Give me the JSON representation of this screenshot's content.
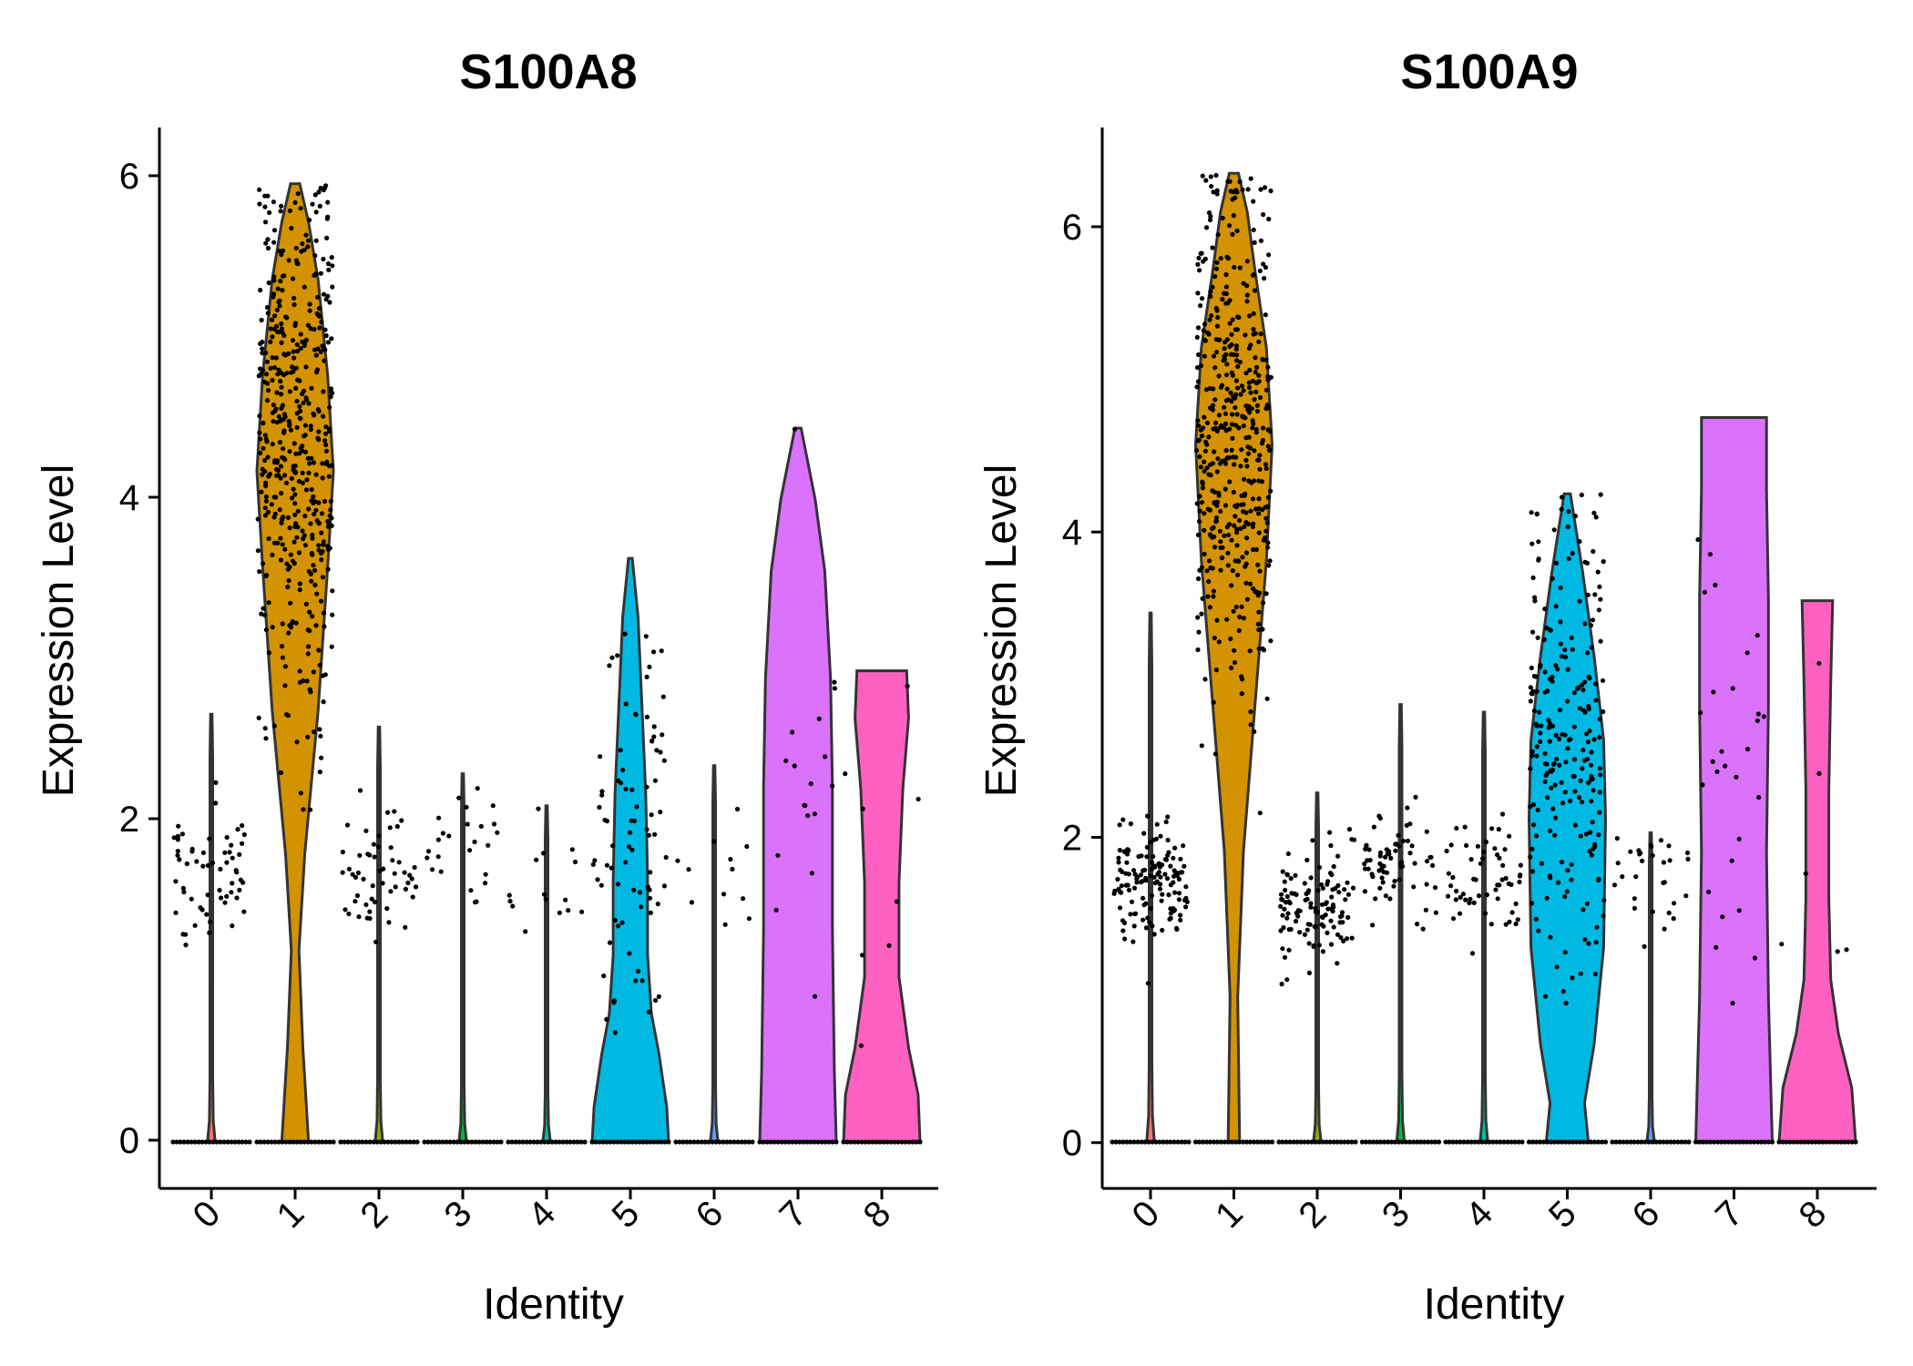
{
  "chart_data": [
    {
      "type": "violin",
      "title": "S100A8",
      "xlabel": "Identity",
      "ylabel": "Expression Level",
      "categories": [
        "0",
        "1",
        "2",
        "3",
        "4",
        "5",
        "6",
        "7",
        "8"
      ],
      "yticks": [
        0,
        2,
        4,
        6
      ],
      "ylim": [
        -0.3,
        6.3
      ],
      "max_values": [
        2.65,
        5.95,
        2.57,
        2.28,
        2.08,
        3.62,
        2.33,
        4.43,
        2.92
      ],
      "nonzero_center": [
        1.7,
        4.4,
        1.6,
        1.8,
        1.7,
        1.9,
        1.7,
        2.3,
        1.9
      ],
      "colors": [
        "#F8766D",
        "#D39200",
        "#93AA00",
        "#00BA38",
        "#00C19F",
        "#00B9E3",
        "#619CFF",
        "#DB72FB",
        "#FF61C3"
      ],
      "grid": false,
      "legend": "none"
    },
    {
      "type": "violin",
      "title": "S100A9",
      "xlabel": "Identity",
      "ylabel": "Expression Level",
      "categories": [
        "0",
        "1",
        "2",
        "3",
        "4",
        "5",
        "6",
        "7",
        "8"
      ],
      "yticks": [
        0,
        2,
        4,
        6
      ],
      "ylim": [
        -0.3,
        6.65
      ],
      "max_values": [
        3.47,
        6.35,
        2.29,
        2.87,
        2.82,
        4.25,
        2.03,
        4.75,
        3.55
      ],
      "nonzero_center": [
        1.7,
        4.7,
        1.55,
        1.85,
        1.75,
        2.6,
        1.75,
        2.6,
        2.0
      ],
      "colors": [
        "#F8766D",
        "#D39200",
        "#93AA00",
        "#00BA38",
        "#00C19F",
        "#00B9E3",
        "#619CFF",
        "#DB72FB",
        "#FF61C3"
      ],
      "grid": false,
      "legend": "none"
    }
  ]
}
